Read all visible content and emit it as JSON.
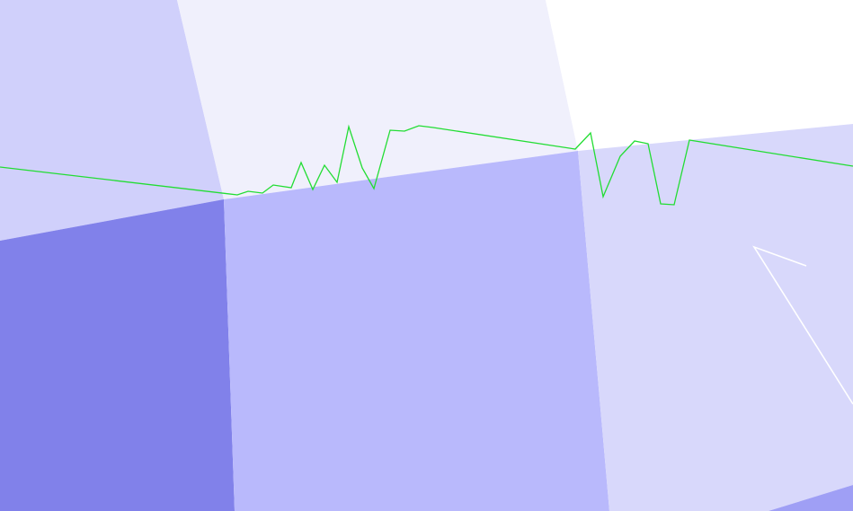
{
  "scene": {
    "kind": "3d-viewport",
    "background_color": "#ffffff",
    "surfaces": [
      {
        "name": "surface-upper-left",
        "color": "#d0d0fb"
      },
      {
        "name": "surface-upper-middle",
        "color": "#f0f0fc"
      },
      {
        "name": "surface-upper-right",
        "color": "#ffffff"
      },
      {
        "name": "surface-lower-left",
        "color": "#8181ea"
      },
      {
        "name": "surface-lower-middle",
        "color": "#b9b9fc"
      },
      {
        "name": "surface-lower-right",
        "color": "#d8d8fb"
      },
      {
        "name": "surface-corner-bottom-right",
        "color": "#9f9ff5"
      }
    ],
    "lines": [
      {
        "name": "terrain-profile-line",
        "color": "#22dd33"
      },
      {
        "name": "white-wire-line",
        "color": "#ffffff"
      }
    ]
  }
}
